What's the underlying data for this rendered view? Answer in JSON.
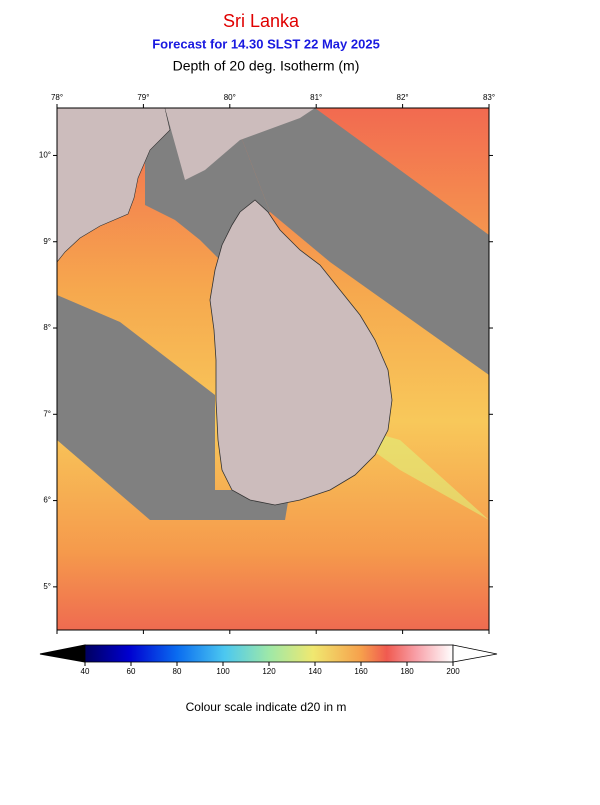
{
  "header": {
    "title": "Sri Lanka",
    "subtitle": "Forecast for  14.30 SLST 22 May 2025",
    "variable": "Depth of 20 deg. Isotherm (m)"
  },
  "map": {
    "xlim": [
      78,
      83
    ],
    "ylim": [
      4.5,
      10.55
    ],
    "xticks": [
      {
        "value": 78,
        "label": "78°"
      },
      {
        "value": 79,
        "label": "79°"
      },
      {
        "value": 80,
        "label": "80°"
      },
      {
        "value": 81,
        "label": "81°"
      },
      {
        "value": 82,
        "label": "82°"
      },
      {
        "value": 83,
        "label": "83°"
      }
    ],
    "yticks": [
      {
        "value": 5,
        "label": "5°"
      },
      {
        "value": 6,
        "label": "6°"
      },
      {
        "value": 7,
        "label": "7°"
      },
      {
        "value": 8,
        "label": "8°"
      },
      {
        "value": 9,
        "label": "9°"
      },
      {
        "value": 10,
        "label": "10°"
      }
    ]
  },
  "colorbar": {
    "lim": [
      40,
      200
    ],
    "ticks": [
      40,
      60,
      80,
      100,
      120,
      140,
      160,
      180,
      200
    ],
    "caption": "Colour scale indicate d20 in m"
  }
}
